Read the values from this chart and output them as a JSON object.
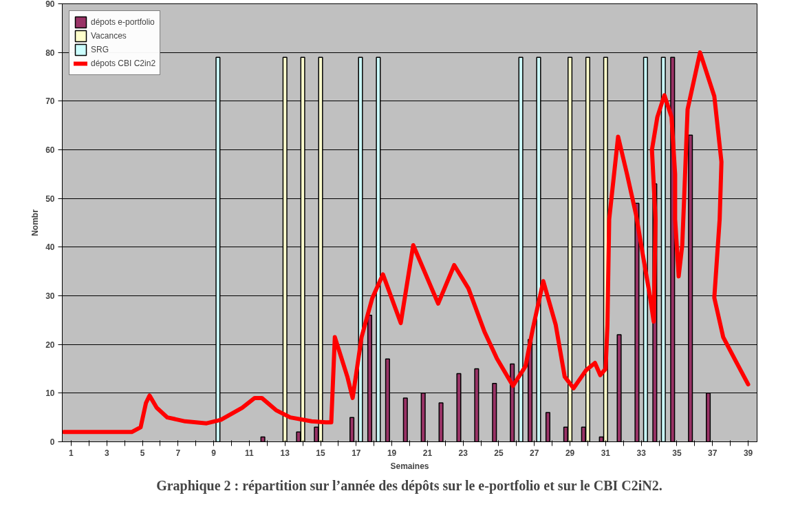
{
  "chart_data": {
    "type": "bar",
    "title": "Graphique 2 : répartition sur l’année des dépôts sur le e-portfolio et sur le CBI C2iN2.",
    "xlabel": "Semaines",
    "ylabel": "Nombr",
    "xlim": [
      0.5,
      39.5
    ],
    "xticks": [
      1,
      {
        "value": 2,
        "label": null
      },
      3,
      {
        "value": 4,
        "label": null
      },
      5,
      {
        "value": 6,
        "label": null
      },
      7,
      {
        "value": 8,
        "label": null
      },
      9,
      {
        "value": 10,
        "label": null
      },
      11,
      {
        "value": 12,
        "label": null
      },
      13,
      {
        "value": 14,
        "label": null
      },
      15,
      {
        "value": 16,
        "label": null
      },
      17,
      {
        "value": 18,
        "label": null
      },
      19,
      {
        "value": 20,
        "label": null
      },
      21,
      {
        "value": 22,
        "label": null
      },
      23,
      {
        "value": 24,
        "label": null
      },
      25,
      {
        "value": 26,
        "label": null
      },
      27,
      {
        "value": 28,
        "label": null
      },
      29,
      {
        "value": 30,
        "label": null
      },
      31,
      {
        "value": 32,
        "label": null
      },
      33,
      {
        "value": 34,
        "label": null
      },
      35,
      {
        "value": 36,
        "label": null
      },
      37,
      {
        "value": 38,
        "label": null
      },
      39
    ],
    "ylim": [
      0,
      90
    ],
    "yticks": [
      0,
      10,
      20,
      30,
      40,
      50,
      60,
      70,
      80,
      90
    ],
    "grid": "y",
    "legend": "top left",
    "series": [
      {
        "name": "dépots e-portfolio",
        "color": "#993366",
        "x": [
          12,
          14,
          15,
          17,
          18,
          19,
          20,
          21,
          22,
          23,
          24,
          25,
          26,
          27,
          28,
          29,
          30,
          31,
          32,
          33,
          34,
          35,
          36,
          37
        ],
        "values": [
          1,
          2,
          3,
          5,
          26,
          17,
          9,
          10,
          8,
          14,
          15,
          12,
          16,
          21,
          6,
          3,
          3,
          1,
          22,
          49,
          53,
          79,
          63,
          10
        ]
      },
      {
        "name": "Vacances",
        "color": "#ffffcc",
        "x": [
          13,
          14,
          15,
          29,
          30,
          31
        ],
        "values": [
          79,
          79,
          79,
          79,
          79,
          79
        ]
      },
      {
        "name": "SRG",
        "color": "#ccffff",
        "x": [
          9,
          17,
          18,
          26,
          27,
          33,
          34
        ],
        "values": [
          79,
          79,
          79,
          79,
          79,
          79,
          79
        ]
      },
      {
        "name": "dépots CBI C2in2",
        "type": "line",
        "color": "#ff0000",
        "x": [
          0.6,
          3,
          4.4,
          4.9,
          5.2,
          5.4,
          5.8,
          6.4,
          7.4,
          8.6,
          9.4,
          10.6,
          11.3,
          11.7,
          12.5,
          13.3,
          14.5,
          15.3,
          15.6,
          15.8,
          16.5,
          16.8,
          17.3,
          17.9,
          18.5,
          19.5,
          20.2,
          21.6,
          22.5,
          23.3,
          24.2,
          24.9,
          25.8,
          26.5,
          26.9,
          27.5,
          28.2,
          28.7,
          29.2,
          29.9,
          30.4,
          30.7,
          31,
          31.1,
          31.2,
          31.7,
          32.2,
          32.7,
          33.5,
          33.7,
          33.8,
          33.6,
          33.9,
          34.3,
          34.7,
          34.9,
          34.9,
          35.1,
          35.3,
          35.4,
          35.6,
          36.3,
          37.1,
          37.5,
          37.4,
          37.1,
          37.6,
          38.3,
          39
        ],
        "values": [
          2,
          2,
          2,
          3,
          8,
          9.5,
          7,
          5,
          4.2,
          3.8,
          4.5,
          7,
          9,
          9,
          6.5,
          5,
          4.2,
          4,
          4,
          21.5,
          13.4,
          9,
          21.5,
          29.5,
          34.4,
          24.4,
          40.4,
          28.4,
          36.3,
          31.5,
          22.6,
          17.1,
          11.5,
          15.5,
          23,
          33,
          24,
          13.4,
          11,
          14.7,
          16.2,
          13.7,
          15,
          24,
          45.7,
          62.7,
          55,
          46.8,
          29.6,
          24.7,
          45.7,
          60,
          66.7,
          71.2,
          66.7,
          55,
          45.7,
          34,
          40.4,
          49.4,
          68.3,
          80,
          71,
          57.5,
          45.7,
          29.6,
          21.5,
          16.6,
          11.8
        ]
      }
    ]
  }
}
